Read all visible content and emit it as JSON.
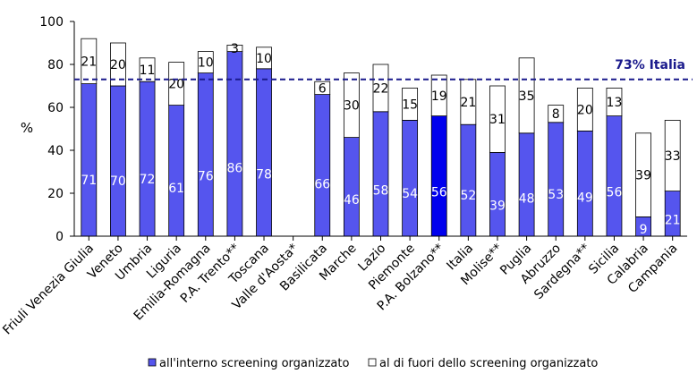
{
  "chart_data": {
    "type": "bar",
    "stacked": true,
    "ylabel": "%",
    "ylim": [
      0,
      100
    ],
    "yticks": [
      0,
      20,
      40,
      60,
      80,
      100
    ],
    "grid": false,
    "legend_position": "bottom",
    "categories": [
      "Friuli Venezia Giulia",
      "Veneto",
      "Umbria",
      "Liguria",
      "Emilia-Romagna",
      "P.A. Trento**",
      "Toscana",
      "Valle d'Aosta*",
      "Basilicata",
      "Marche",
      "Lazio",
      "Piemonte",
      "P.A. Bolzano**",
      "Italia",
      "Molise**",
      "Puglia",
      "Abruzzo",
      "Sardegna**",
      "Sicilia",
      "Calabria",
      "Campania"
    ],
    "series": [
      {
        "name": "all'interno screening organizzato",
        "color": "#5555ee",
        "values": [
          71,
          70,
          72,
          61,
          76,
          86,
          78,
          null,
          66,
          46,
          58,
          54,
          56,
          52,
          39,
          48,
          53,
          49,
          56,
          9,
          21
        ]
      },
      {
        "name": "al di fuori dello screening organizzato",
        "color": "#ffffff",
        "values": [
          21,
          20,
          11,
          20,
          10,
          3,
          10,
          null,
          6,
          30,
          22,
          15,
          19,
          21,
          31,
          35,
          8,
          20,
          13,
          39,
          33
        ]
      }
    ],
    "highlight": {
      "category": "P.A. Bolzano**",
      "color": "#0000ee"
    },
    "reference_line": {
      "value": 73,
      "label": "73% Italia",
      "color": "#1a1a8c",
      "style": "dashed"
    }
  }
}
